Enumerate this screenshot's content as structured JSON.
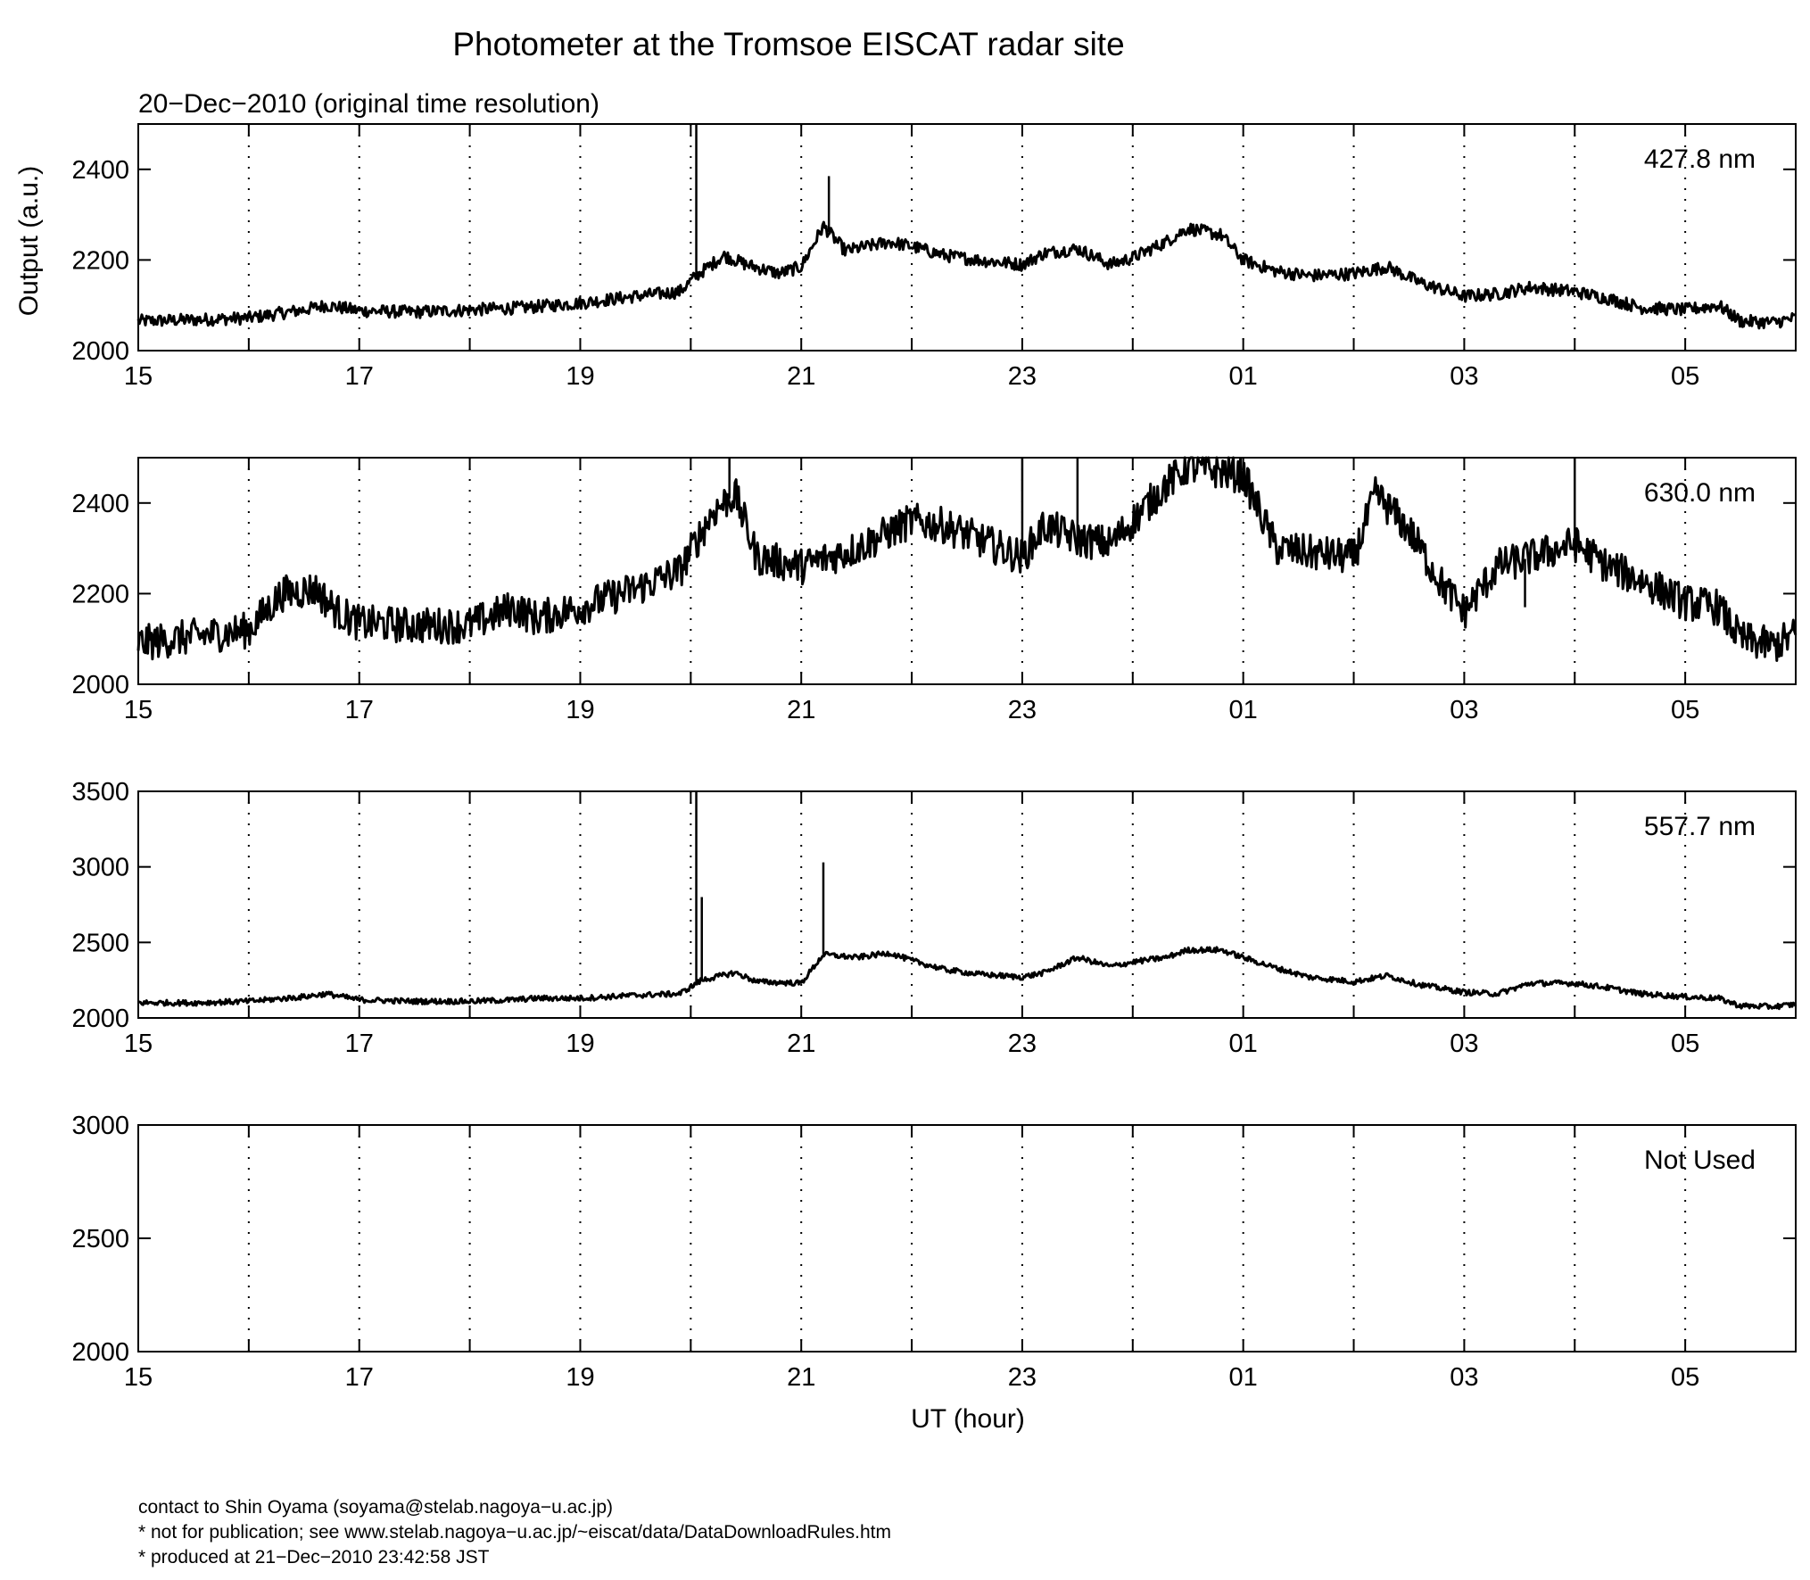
{
  "figure": {
    "title": "Photometer at the Tromsoe EISCAT radar site",
    "subtitle": "20−Dec−2010 (original time resolution)",
    "ylabel": "Output (a.u.)",
    "xlabel": "UT (hour)"
  },
  "footer": {
    "line1": "contact to Shin Oyama (soyama@stelab.nagoya−u.ac.jp)",
    "line2": "* not for publication; see www.stelab.nagoya−u.ac.jp/~eiscat/data/DataDownloadRules.htm",
    "line3": "* produced at 21−Dec−2010 23:42:58 JST"
  },
  "chart_data": [
    {
      "type": "line",
      "panel_label": "427.8 nm",
      "x_range_hours": [
        15,
        30
      ],
      "x_ticks": [
        "15",
        "17",
        "19",
        "21",
        "23",
        "01",
        "03",
        "05"
      ],
      "y_ticks": [
        "2000",
        "2200",
        "2400"
      ],
      "ylim": [
        2000,
        2500
      ],
      "grid": "dotted vertical at each hour",
      "x": [
        15.0,
        15.5,
        16.0,
        16.5,
        16.7,
        17.0,
        17.5,
        18.0,
        18.5,
        19.0,
        19.5,
        19.9,
        20.05,
        20.3,
        20.5,
        20.8,
        21.0,
        21.2,
        21.4,
        21.8,
        22.0,
        22.3,
        22.6,
        23.0,
        23.2,
        23.5,
        23.8,
        24.0,
        24.3,
        24.5,
        24.8,
        25.0,
        25.3,
        25.6,
        26.0,
        26.3,
        26.6,
        27.0,
        27.3,
        27.6,
        28.0,
        28.3,
        28.6,
        29.0,
        29.3,
        29.5,
        29.8,
        30.0
      ],
      "values": [
        2065,
        2068,
        2072,
        2090,
        2100,
        2088,
        2085,
        2090,
        2095,
        2105,
        2120,
        2130,
        2165,
        2210,
        2190,
        2170,
        2185,
        2275,
        2220,
        2240,
        2230,
        2210,
        2200,
        2190,
        2215,
        2225,
        2190,
        2205,
        2240,
        2270,
        2255,
        2200,
        2175,
        2165,
        2170,
        2185,
        2150,
        2120,
        2125,
        2140,
        2130,
        2115,
        2095,
        2090,
        2100,
        2065,
        2062,
        2072
      ],
      "spikes": [
        {
          "x": 20.05,
          "y": 2500
        },
        {
          "x": 21.25,
          "y": 2385
        }
      ],
      "noise_amplitude": 14
    },
    {
      "type": "line",
      "panel_label": "630.0 nm",
      "x_range_hours": [
        15,
        30
      ],
      "x_ticks": [
        "15",
        "17",
        "19",
        "21",
        "23",
        "01",
        "03",
        "05"
      ],
      "y_ticks": [
        "2000",
        "2200",
        "2400"
      ],
      "ylim": [
        2000,
        2500
      ],
      "grid": "dotted vertical at each hour",
      "x": [
        15.0,
        15.5,
        16.0,
        16.3,
        16.6,
        16.8,
        17.0,
        17.5,
        18.0,
        18.4,
        18.6,
        19.0,
        19.5,
        19.9,
        20.2,
        20.4,
        20.6,
        21.0,
        21.5,
        22.0,
        22.3,
        22.6,
        22.8,
        23.0,
        23.2,
        23.5,
        23.8,
        24.0,
        24.3,
        24.5,
        24.8,
        25.0,
        25.3,
        25.6,
        26.0,
        26.2,
        26.5,
        26.8,
        27.0,
        27.3,
        27.6,
        28.0,
        28.3,
        28.6,
        29.0,
        29.3,
        29.5,
        29.8,
        30.0
      ],
      "values": [
        2090,
        2105,
        2120,
        2200,
        2210,
        2160,
        2135,
        2130,
        2130,
        2170,
        2145,
        2170,
        2210,
        2250,
        2380,
        2420,
        2280,
        2260,
        2300,
        2360,
        2350,
        2320,
        2300,
        2280,
        2350,
        2320,
        2310,
        2360,
        2440,
        2480,
        2470,
        2460,
        2300,
        2290,
        2280,
        2420,
        2340,
        2220,
        2160,
        2260,
        2280,
        2310,
        2260,
        2230,
        2180,
        2170,
        2100,
        2085,
        2110
      ],
      "spikes": [
        {
          "x": 20.35,
          "y": 2500
        },
        {
          "x": 23.0,
          "y": 2500
        },
        {
          "x": 23.5,
          "y": 2500
        },
        {
          "x": 27.55,
          "y": 2170
        },
        {
          "x": 28.0,
          "y": 2500
        }
      ],
      "noise_amplitude": 40
    },
    {
      "type": "line",
      "panel_label": "557.7 nm",
      "x_range_hours": [
        15,
        30
      ],
      "x_ticks": [
        "15",
        "17",
        "19",
        "21",
        "23",
        "01",
        "03",
        "05"
      ],
      "y_ticks": [
        "2000",
        "2500",
        "3000",
        "3500"
      ],
      "ylim": [
        2000,
        3500
      ],
      "grid": "dotted vertical at each hour",
      "x": [
        15.0,
        15.5,
        16.0,
        16.5,
        16.7,
        17.0,
        17.5,
        18.0,
        18.4,
        18.6,
        19.0,
        19.5,
        19.9,
        20.1,
        20.4,
        20.6,
        21.0,
        21.2,
        21.5,
        21.8,
        22.0,
        22.3,
        22.6,
        23.0,
        23.2,
        23.5,
        23.8,
        24.0,
        24.3,
        24.5,
        24.8,
        25.0,
        25.3,
        25.6,
        26.0,
        26.3,
        26.6,
        27.0,
        27.3,
        27.6,
        28.0,
        28.3,
        28.6,
        29.0,
        29.3,
        29.5,
        29.8,
        30.0
      ],
      "values": [
        2100,
        2100,
        2110,
        2140,
        2160,
        2120,
        2110,
        2110,
        2120,
        2130,
        2130,
        2150,
        2160,
        2250,
        2300,
        2240,
        2230,
        2420,
        2400,
        2430,
        2380,
        2320,
        2290,
        2270,
        2300,
        2400,
        2340,
        2370,
        2400,
        2450,
        2450,
        2400,
        2330,
        2270,
        2240,
        2280,
        2220,
        2170,
        2160,
        2230,
        2230,
        2200,
        2160,
        2140,
        2130,
        2080,
        2075,
        2090
      ],
      "spikes": [
        {
          "x": 20.05,
          "y": 3500
        },
        {
          "x": 20.1,
          "y": 2800
        },
        {
          "x": 21.2,
          "y": 3030
        }
      ],
      "noise_amplitude": 18
    },
    {
      "type": "line",
      "panel_label": "Not Used",
      "x_range_hours": [
        15,
        30
      ],
      "x_ticks": [
        "15",
        "17",
        "19",
        "21",
        "23",
        "01",
        "03",
        "05"
      ],
      "y_ticks": [
        "2000",
        "2500",
        "3000"
      ],
      "ylim": [
        2000,
        3000
      ],
      "grid": "dotted vertical at each hour",
      "x": [],
      "values": []
    }
  ]
}
